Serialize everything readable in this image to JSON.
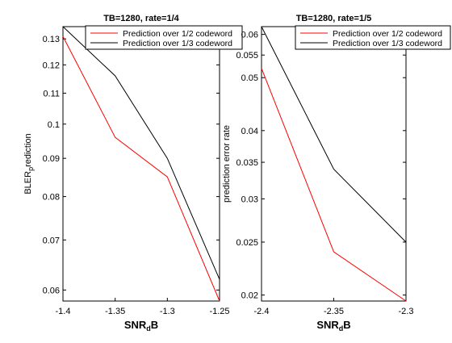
{
  "chart_data": [
    {
      "type": "line",
      "title": "TB=1280, rate=1/4",
      "xlabel": "SNR_dB",
      "ylabel": "BLER_p rediction",
      "x": [
        -1.4,
        -1.35,
        -1.3,
        -1.25
      ],
      "xlim": [
        -1.4,
        -1.25
      ],
      "ylim": [
        0.058,
        0.135
      ],
      "yscale": "log",
      "xticks": [
        "-1.4",
        "-1.35",
        "-1.3",
        "-1.25"
      ],
      "yticks": [
        "0.06",
        "0.07",
        "0.08",
        "0.09",
        "0.1",
        "0.11",
        "0.12",
        "0.13"
      ],
      "legend_position": "top-right",
      "series": [
        {
          "name": "Prediction over 1/2 codeword",
          "color": "#ff0000",
          "values": [
            0.131,
            0.096,
            0.085,
            0.058
          ]
        },
        {
          "name": "Prediction over 1/3 codeword",
          "color": "#000000",
          "values": [
            0.135,
            0.116,
            0.09,
            0.062
          ]
        }
      ]
    },
    {
      "type": "line",
      "title": "TB=1280, rate=1/5",
      "xlabel": "SNR_dB",
      "ylabel": "prediction error rate",
      "x": [
        -2.4,
        -2.35,
        -2.3
      ],
      "xlim": [
        -2.4,
        -2.3
      ],
      "ylim": [
        0.0195,
        0.062
      ],
      "yscale": "log",
      "xticks": [
        "-2.4",
        "-2.35",
        "-2.3"
      ],
      "yticks": [
        "0.02",
        "0.025",
        "0.03",
        "0.035",
        "0.04",
        "0.05",
        "0.055",
        "0.06"
      ],
      "legend_position": "top-right",
      "series": [
        {
          "name": "Prediction over 1/2 codeword",
          "color": "#ff0000",
          "values": [
            0.052,
            0.024,
            0.0195
          ]
        },
        {
          "name": "Prediction over 1/3 codeword",
          "color": "#000000",
          "values": [
            0.062,
            0.034,
            0.025
          ]
        }
      ]
    }
  ]
}
